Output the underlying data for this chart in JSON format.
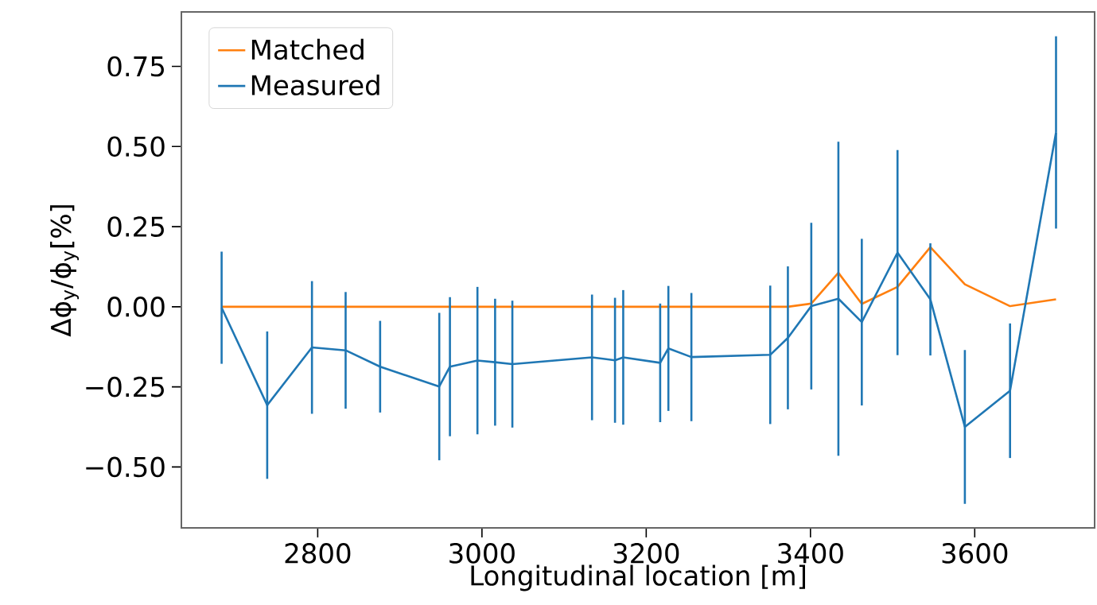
{
  "chart_data": {
    "type": "line",
    "xlabel": "Longitudinal location [m]",
    "ylabel": "Δϕ$_{y}$/ϕ$_{y}$[%]",
    "x": [
      2683,
      2738.5,
      2793,
      2834,
      2876,
      2948,
      2961,
      2994.5,
      3016,
      3037,
      3134,
      3162,
      3172,
      3217,
      3227,
      3255,
      3351,
      3372.5,
      3401,
      3434,
      3462.5,
      3506,
      3546,
      3588,
      3643,
      3699
    ],
    "series": [
      {
        "name": "Matched",
        "color": "#ff7f0e",
        "values": [
          0,
          0,
          0,
          0,
          0,
          0,
          0,
          0,
          0,
          0,
          0,
          0,
          0,
          0,
          0,
          0,
          0,
          0,
          0.01,
          0.106,
          0.009,
          0.062,
          0.186,
          0.07,
          0.002,
          0.023
        ]
      },
      {
        "name": "Measured",
        "color": "#1f77b4",
        "values": [
          -0.003,
          -0.307,
          -0.127,
          -0.136,
          -0.187,
          -0.249,
          -0.187,
          -0.168,
          -0.173,
          -0.179,
          -0.158,
          -0.167,
          -0.158,
          -0.175,
          -0.13,
          -0.157,
          -0.15,
          -0.097,
          0.002,
          0.025,
          -0.048,
          0.169,
          0.023,
          -0.375,
          -0.262,
          0.544
        ],
        "errors": [
          0.175,
          0.23,
          0.207,
          0.182,
          0.143,
          0.23,
          0.217,
          0.23,
          0.198,
          0.198,
          0.196,
          0.195,
          0.21,
          0.185,
          0.195,
          0.2,
          0.216,
          0.223,
          0.26,
          0.49,
          0.26,
          0.32,
          0.175,
          0.24,
          0.21,
          0.3
        ]
      }
    ],
    "xlim": [
      2634,
      3746
    ],
    "ylim": [
      -0.69,
      0.92
    ],
    "xticks": [
      2800,
      3000,
      3200,
      3400,
      3600
    ],
    "yticks": [
      {
        "value": -0.5,
        "label": "−0.50"
      },
      {
        "value": -0.25,
        "label": "−0.25"
      },
      {
        "value": 0,
        "label": "0.00"
      },
      {
        "value": 0.25,
        "label": "0.25"
      },
      {
        "value": 0.5,
        "label": "0.50"
      },
      {
        "value": 0.75,
        "label": "0.75"
      }
    ],
    "legend": "top left",
    "grid": false
  }
}
